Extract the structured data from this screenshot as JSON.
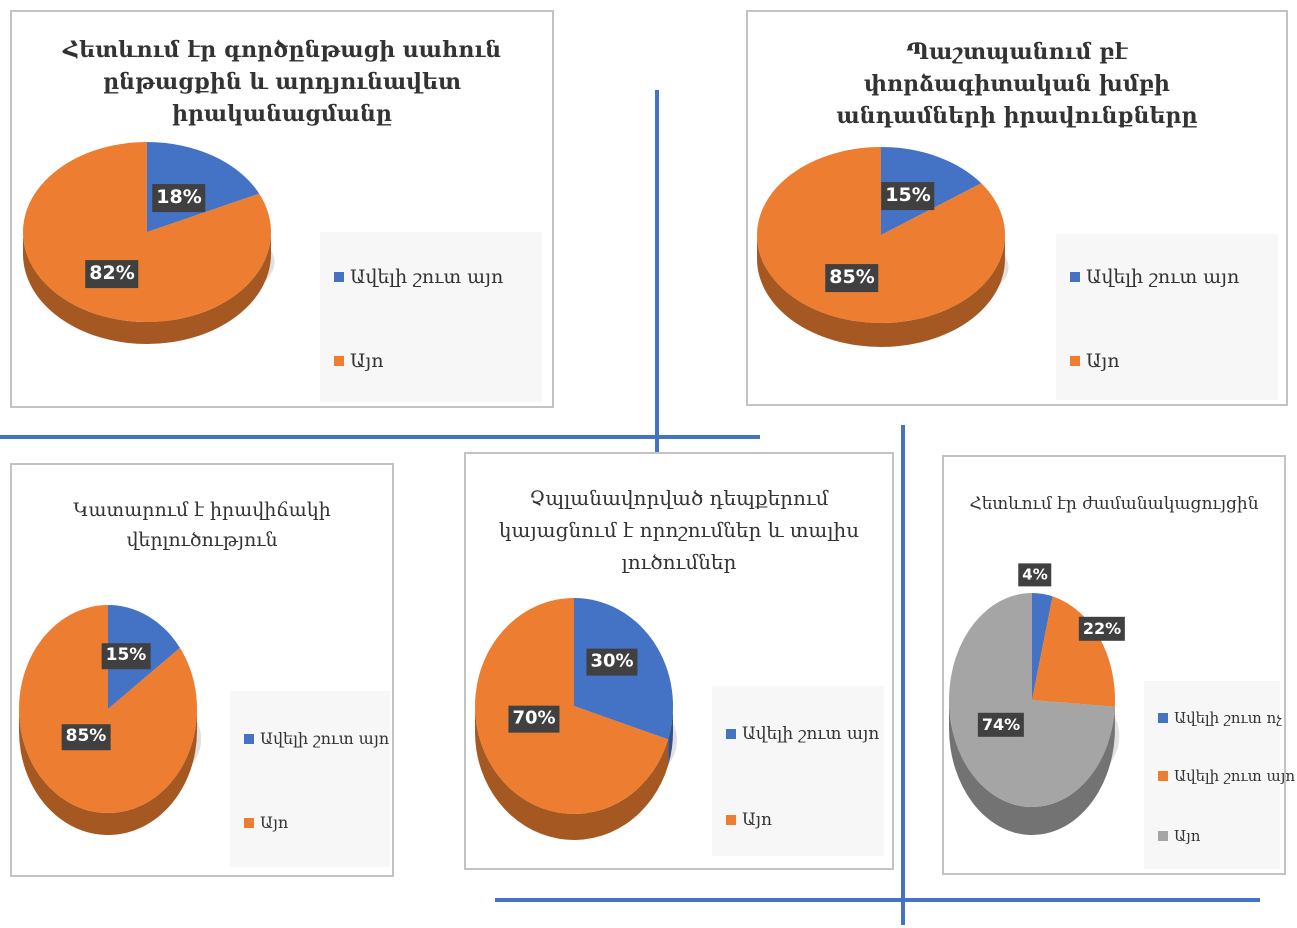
{
  "colors": {
    "blue": "#4472c4",
    "orange": "#ed7d31",
    "gray": "#a5a5a5",
    "divider": "#4f81bd",
    "label_bg": "#404040"
  },
  "chart_data": [
    {
      "type": "pie",
      "title_lines": [
        "Հետևում էր գործընթացի սահուն",
        "ընթացքին և արդյունավետ",
        "իրականացմանը"
      ],
      "categories": [
        "Ավելի շուտ այո",
        "Այո"
      ],
      "values": [
        18,
        82
      ],
      "data_labels": [
        "18%",
        "82%"
      ],
      "colors": [
        "#4472c4",
        "#ed7d31"
      ],
      "legend_position": "right"
    },
    {
      "type": "pie",
      "title_lines": [
        "Պաշտպանում բէ",
        "փորձագիտական խմբի",
        "անդամների իրավունքները"
      ],
      "categories": [
        "Ավելի շուտ այո",
        "Այո"
      ],
      "values": [
        15,
        85
      ],
      "data_labels": [
        "15%",
        "85%"
      ],
      "colors": [
        "#4472c4",
        "#ed7d31"
      ],
      "legend_position": "right"
    },
    {
      "type": "pie",
      "title_lines": [
        "Կատարում է իրավիճակի",
        "վերլուծություն"
      ],
      "categories": [
        "Ավելի շուտ այո",
        "Այո"
      ],
      "values": [
        15,
        85
      ],
      "data_labels": [
        "15%",
        "85%"
      ],
      "colors": [
        "#4472c4",
        "#ed7d31"
      ],
      "legend_position": "right"
    },
    {
      "type": "pie",
      "title_lines": [
        "Չպլանավորված դեպքերում",
        "կայացնում է որոշումներ և տալիս",
        "լուծումներ"
      ],
      "categories": [
        "Ավելի շուտ այո",
        "Այո"
      ],
      "values": [
        30,
        70
      ],
      "data_labels": [
        "30%",
        "70%"
      ],
      "colors": [
        "#4472c4",
        "#ed7d31"
      ],
      "legend_position": "right"
    },
    {
      "type": "pie",
      "title_lines": [
        "Հետևում էր ժամանակացույցին"
      ],
      "categories": [
        "Ավելի շուտ ոչ",
        "Ավելի շուտ այո",
        "Այո"
      ],
      "values": [
        4,
        22,
        74
      ],
      "data_labels": [
        "4%",
        "22%",
        "74%"
      ],
      "colors": [
        "#4472c4",
        "#ed7d31",
        "#a5a5a5"
      ],
      "legend_position": "right"
    }
  ]
}
